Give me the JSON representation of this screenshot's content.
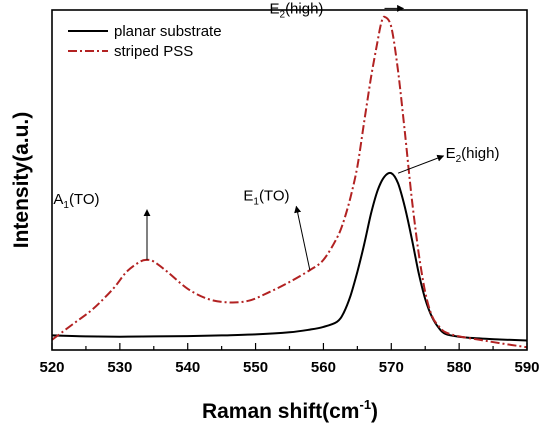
{
  "chart_data": {
    "type": "line",
    "xlabel": "Raman shift(cm",
    "xlabel_sup": "-1",
    "xlabel_close": ")",
    "ylabel": "Intensity(a.u.)",
    "xlim": [
      520,
      590
    ],
    "ylim": [
      0,
      1
    ],
    "x_ticks": [
      520,
      530,
      540,
      550,
      560,
      570,
      580,
      590
    ],
    "y_ticks_shown": false,
    "legend": "top-left",
    "series": [
      {
        "name": "planar substrate",
        "color": "#000000",
        "style": "solid",
        "points": [
          [
            520,
            0.043
          ],
          [
            525,
            0.04
          ],
          [
            530,
            0.039
          ],
          [
            535,
            0.04
          ],
          [
            540,
            0.041
          ],
          [
            545,
            0.043
          ],
          [
            550,
            0.046
          ],
          [
            555,
            0.052
          ],
          [
            558,
            0.06
          ],
          [
            560,
            0.068
          ],
          [
            562,
            0.083
          ],
          [
            563,
            0.11
          ],
          [
            564,
            0.16
          ],
          [
            565,
            0.23
          ],
          [
            566,
            0.31
          ],
          [
            567,
            0.4
          ],
          [
            568,
            0.47
          ],
          [
            569,
            0.51
          ],
          [
            570,
            0.52
          ],
          [
            571,
            0.49
          ],
          [
            572,
            0.42
          ],
          [
            573,
            0.33
          ],
          [
            574,
            0.23
          ],
          [
            575,
            0.15
          ],
          [
            576,
            0.097
          ],
          [
            577,
            0.065
          ],
          [
            578,
            0.047
          ],
          [
            580,
            0.039
          ],
          [
            583,
            0.034
          ],
          [
            586,
            0.031
          ],
          [
            590,
            0.028
          ]
        ]
      },
      {
        "name": "striped PSS",
        "color": "#b22222",
        "style": "dashdot",
        "points": [
          [
            520,
            0.03
          ],
          [
            523,
            0.075
          ],
          [
            526,
            0.12
          ],
          [
            529,
            0.18
          ],
          [
            531,
            0.23
          ],
          [
            533,
            0.26
          ],
          [
            534,
            0.265
          ],
          [
            535,
            0.26
          ],
          [
            537,
            0.23
          ],
          [
            540,
            0.18
          ],
          [
            543,
            0.15
          ],
          [
            546,
            0.14
          ],
          [
            549,
            0.145
          ],
          [
            552,
            0.17
          ],
          [
            555,
            0.2
          ],
          [
            558,
            0.235
          ],
          [
            560,
            0.265
          ],
          [
            562,
            0.33
          ],
          [
            563,
            0.38
          ],
          [
            564,
            0.45
          ],
          [
            565,
            0.54
          ],
          [
            566,
            0.67
          ],
          [
            567,
            0.8
          ],
          [
            568,
            0.91
          ],
          [
            568.5,
            0.96
          ],
          [
            569,
            0.98
          ],
          [
            570,
            0.95
          ],
          [
            571,
            0.82
          ],
          [
            572,
            0.64
          ],
          [
            573,
            0.45
          ],
          [
            574,
            0.29
          ],
          [
            575,
            0.17
          ],
          [
            576,
            0.1
          ],
          [
            577,
            0.07
          ],
          [
            578,
            0.052
          ],
          [
            580,
            0.04
          ],
          [
            583,
            0.03
          ],
          [
            586,
            0.02
          ],
          [
            590,
            0.008
          ]
        ]
      }
    ],
    "annotations": [
      {
        "id": "a1",
        "base": "A",
        "sub": "1",
        "suffix": "(TO)",
        "at": [
          534,
          0.265
        ],
        "text_at": [
          527,
          0.43
        ]
      },
      {
        "id": "e1",
        "base": "E",
        "sub": "1",
        "suffix": "(TO)",
        "at": [
          558,
          0.235
        ],
        "text_at": [
          555,
          0.44
        ]
      },
      {
        "id": "e2-planar",
        "base": "E",
        "sub": "2",
        "suffix": "(high)",
        "at": [
          571,
          0.52
        ],
        "text_at": [
          578,
          0.565
        ]
      },
      {
        "id": "e2-pss",
        "base": "E",
        "sub": "2",
        "suffix": "(high)",
        "at": [
          569,
          0.98
        ],
        "text_at": [
          560,
          0.99
        ]
      }
    ]
  }
}
